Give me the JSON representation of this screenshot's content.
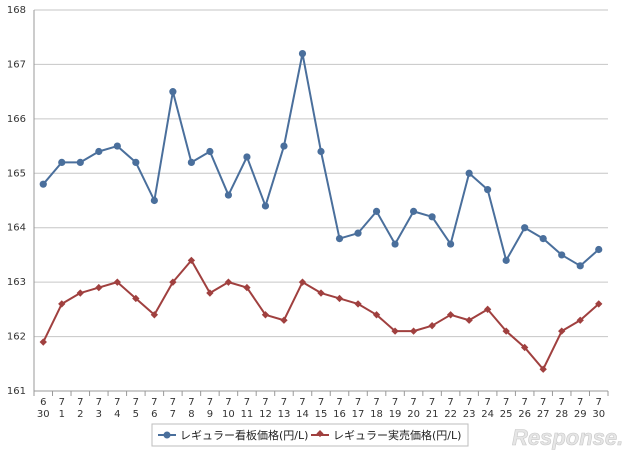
{
  "chart_data": {
    "type": "line",
    "categories": [
      [
        "6",
        "30"
      ],
      [
        "7",
        "1"
      ],
      [
        "7",
        "2"
      ],
      [
        "7",
        "3"
      ],
      [
        "7",
        "4"
      ],
      [
        "7",
        "5"
      ],
      [
        "7",
        "6"
      ],
      [
        "7",
        "7"
      ],
      [
        "7",
        "8"
      ],
      [
        "7",
        "9"
      ],
      [
        "7",
        "10"
      ],
      [
        "7",
        "11"
      ],
      [
        "7",
        "12"
      ],
      [
        "7",
        "13"
      ],
      [
        "7",
        "14"
      ],
      [
        "7",
        "15"
      ],
      [
        "7",
        "16"
      ],
      [
        "7",
        "17"
      ],
      [
        "7",
        "18"
      ],
      [
        "7",
        "19"
      ],
      [
        "7",
        "20"
      ],
      [
        "7",
        "21"
      ],
      [
        "7",
        "22"
      ],
      [
        "7",
        "23"
      ],
      [
        "7",
        "24"
      ],
      [
        "7",
        "25"
      ],
      [
        "7",
        "26"
      ],
      [
        "7",
        "27"
      ],
      [
        "7",
        "28"
      ],
      [
        "7",
        "29"
      ],
      [
        "7",
        "30"
      ]
    ],
    "ylim": [
      161,
      168
    ],
    "yticks": [
      161,
      162,
      163,
      164,
      165,
      166,
      167,
      168
    ],
    "grid": true,
    "legend_position": "bottom-center",
    "series": [
      {
        "name": "レギュラー看板価格(円/L)",
        "color": "#4a6f9c",
        "marker": "circle",
        "values": [
          164.8,
          165.2,
          165.2,
          165.4,
          165.5,
          165.2,
          164.5,
          166.5,
          165.2,
          165.4,
          164.6,
          165.3,
          164.4,
          165.5,
          167.2,
          165.4,
          163.8,
          163.9,
          164.3,
          163.7,
          164.3,
          164.2,
          163.7,
          165.0,
          164.7,
          163.4,
          164.0,
          163.8,
          163.5,
          163.3,
          163.6
        ]
      },
      {
        "name": "レギュラー実売価格(円/L)",
        "color": "#a0403f",
        "marker": "diamond",
        "values": [
          161.9,
          162.6,
          162.8,
          162.9,
          163.0,
          162.7,
          162.4,
          163.0,
          163.4,
          162.8,
          163.0,
          162.9,
          162.4,
          162.3,
          163.0,
          162.8,
          162.7,
          162.6,
          162.4,
          162.1,
          162.1,
          162.2,
          162.4,
          162.3,
          162.5,
          162.1,
          161.8,
          161.4,
          162.1,
          162.3,
          162.6
        ]
      }
    ]
  },
  "watermark": "Response."
}
